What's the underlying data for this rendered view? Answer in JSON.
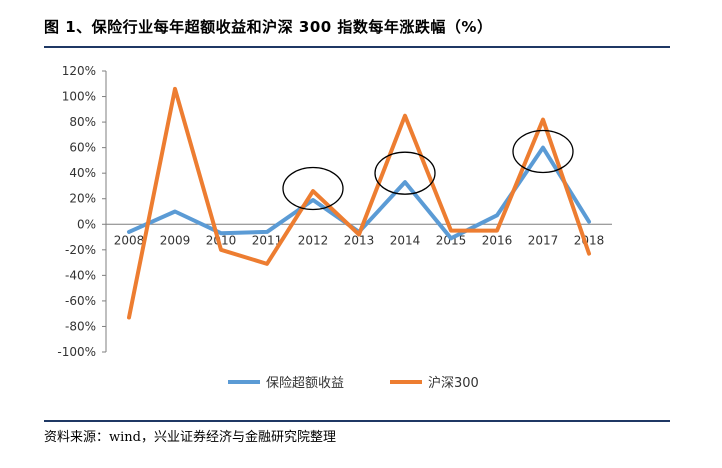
{
  "title": "图 1、保险行业每年超额收益和沪深 300 指数每年涨跌幅（%）",
  "source": "资料来源：wind，兴业证券经济与金融研究院整理",
  "chart_data": {
    "type": "line",
    "x": [
      "2008",
      "2009",
      "2010",
      "2011",
      "2012",
      "2013",
      "2014",
      "2015",
      "2016",
      "2017",
      "2018"
    ],
    "ylim": [
      -100,
      120
    ],
    "yticks": [
      "120%",
      "100%",
      "80%",
      "60%",
      "40%",
      "20%",
      "0%",
      "-20%",
      "-40%",
      "-60%",
      "-80%",
      "-100%"
    ],
    "ytick_values": [
      120,
      100,
      80,
      60,
      40,
      20,
      0,
      -20,
      -40,
      -60,
      -80,
      -100
    ],
    "grid": false,
    "legend_position": "bottom",
    "series": [
      {
        "name": "保险超额收益",
        "color": "#5b9bd5",
        "values": [
          -6,
          10,
          -7,
          -6,
          19,
          -6,
          33,
          -11,
          7,
          60,
          2
        ]
      },
      {
        "name": "沪深300",
        "color": "#ed7d31",
        "values": [
          -73,
          106,
          -20,
          -31,
          26,
          -8,
          85,
          -5,
          -5,
          82,
          -23
        ]
      }
    ],
    "annotations": [
      {
        "type": "ellipse",
        "x": "2012",
        "y": 28
      },
      {
        "type": "ellipse",
        "x": "2014",
        "y": 40
      },
      {
        "type": "ellipse",
        "x": "2017",
        "y": 57
      }
    ]
  }
}
